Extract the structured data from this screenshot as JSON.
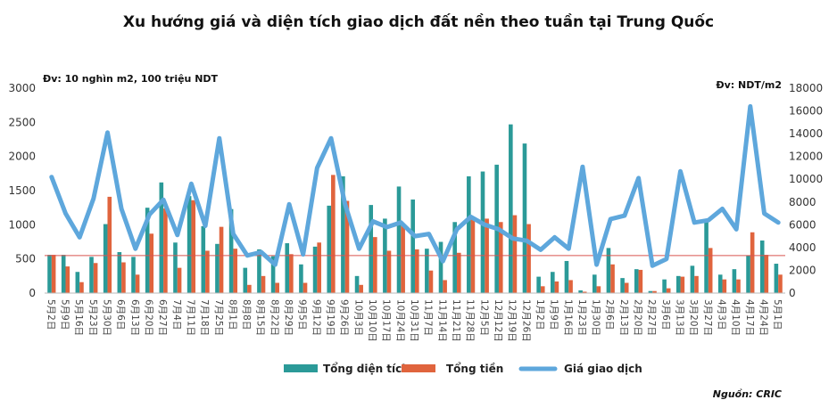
{
  "colors": {
    "area": "#2b9a98",
    "total": "#e0643d",
    "price": "#5ea7dc",
    "refline": "#d9534f"
  },
  "chart_data": {
    "type": "bar+line",
    "title": "Xu hướng giá và diện tích giao dịch đất nền theo tuần tại Trung Quốc",
    "left_unit": "Đv: 10 nghìn m2, 100 triệu NDT",
    "right_unit": "Đv: NDT/m2",
    "source": "Nguồn: CRIC",
    "ylim_left": [
      0,
      3000
    ],
    "ylim_right": [
      0,
      18000
    ],
    "yticks_left": [
      "0",
      "500",
      "1000",
      "1500",
      "2000",
      "2500",
      "3000"
    ],
    "yticks_right": [
      "0",
      "2000",
      "4000",
      "6000",
      "8000",
      "10000",
      "12000",
      "14000",
      "16000",
      "18000"
    ],
    "reference_line_left": 550,
    "categories": [
      "5月2日",
      "5月9日",
      "5月16日",
      "5月23日",
      "5月30日",
      "6月6日",
      "6月13日",
      "6月20日",
      "6月27日",
      "7月4日",
      "7月11日",
      "7月18日",
      "7月25日",
      "8月1日",
      "8月8日",
      "8月15日",
      "8月22日",
      "8月29日",
      "9月5日",
      "9月12日",
      "9月19日",
      "9月26日",
      "10月3日",
      "10月10日",
      "10月17日",
      "10月24日",
      "10月31日",
      "11月7日",
      "11月14日",
      "11月21日",
      "11月28日",
      "12月5日",
      "12月12日",
      "12月19日",
      "12月26日",
      "1月2日",
      "1月9日",
      "1月16日",
      "1月23日",
      "1月30日",
      "2月6日",
      "2月13日",
      "2月20日",
      "2月27日",
      "3月6日",
      "3月13日",
      "3月20日",
      "3月27日",
      "4月3日",
      "4月10日",
      "4月17日",
      "4月24日",
      "5月1日"
    ],
    "x_labels_shown": [
      "5月2日",
      "5月9日",
      "5月16日",
      "5月23日",
      "5月30日",
      "6月6日",
      "6月13日",
      "6月20日",
      "6月27日",
      "7月4日",
      "7月11日",
      "7月18日",
      "7月25日",
      "8月1日",
      "8月8日",
      "8月15日",
      "8月22日",
      "8月29日",
      "9月5日",
      "9月12日",
      "9月19日",
      "9月26日",
      "10月3日",
      "10月10日",
      "10月17日",
      "10月24日",
      "10月31日",
      "11月7日",
      "11月14日",
      "11月21日",
      "11月28日",
      "12月5日",
      "12月12日",
      "12月19日",
      "12月26日",
      "1月2日",
      "1月9日",
      "1月16日",
      "1月23日",
      "1月30日",
      "2月6日",
      "2月13日",
      "2月20日",
      "2月27日",
      "3月6日",
      "3月13日",
      "3月20日",
      "3月27日",
      "4月3日",
      "4月10日",
      "4月17日",
      "4月24日",
      "5月1日"
    ],
    "series": [
      {
        "name": "Tổng diện tích",
        "kind": "bar",
        "axis": "left",
        "values": [
          560,
          560,
          310,
          530,
          1010,
          600,
          530,
          1250,
          1620,
          740,
          1420,
          980,
          720,
          1230,
          370,
          640,
          540,
          730,
          420,
          680,
          1280,
          1710,
          250,
          1290,
          1090,
          1560,
          1370,
          650,
          750,
          1040,
          1710,
          1780,
          1880,
          2470,
          2190,
          240,
          310,
          470,
          40,
          270,
          660,
          220,
          350,
          30,
          200,
          250,
          400,
          1080,
          270,
          350,
          550,
          770,
          430
        ]
      },
      {
        "name": "Tổng tiền",
        "kind": "bar",
        "axis": "left",
        "values": [
          560,
          390,
          160,
          440,
          1410,
          450,
          270,
          870,
          1240,
          370,
          1360,
          620,
          970,
          650,
          120,
          250,
          150,
          570,
          150,
          740,
          1730,
          1350,
          120,
          820,
          620,
          1000,
          640,
          330,
          190,
          590,
          1110,
          1090,
          1040,
          1140,
          1010,
          100,
          170,
          190,
          20,
          100,
          420,
          150,
          340,
          30,
          70,
          240,
          250,
          660,
          200,
          200,
          890,
          560,
          270
        ]
      },
      {
        "name": "Giá giao dịch",
        "kind": "line",
        "axis": "right",
        "values": [
          10200,
          7000,
          4900,
          8300,
          14100,
          7400,
          3900,
          6900,
          8200,
          5100,
          9600,
          5900,
          13600,
          5200,
          3300,
          3600,
          2500,
          7800,
          3400,
          11000,
          13600,
          7800,
          3900,
          6300,
          5800,
          6200,
          5000,
          5200,
          2800,
          5600,
          6700,
          6000,
          5600,
          4800,
          4600,
          3800,
          4900,
          3900,
          11100,
          2500,
          6500,
          6800,
          10100,
          2400,
          3000,
          10700,
          6200,
          6400,
          7400,
          5600,
          16400,
          7000,
          6200
        ]
      }
    ]
  }
}
